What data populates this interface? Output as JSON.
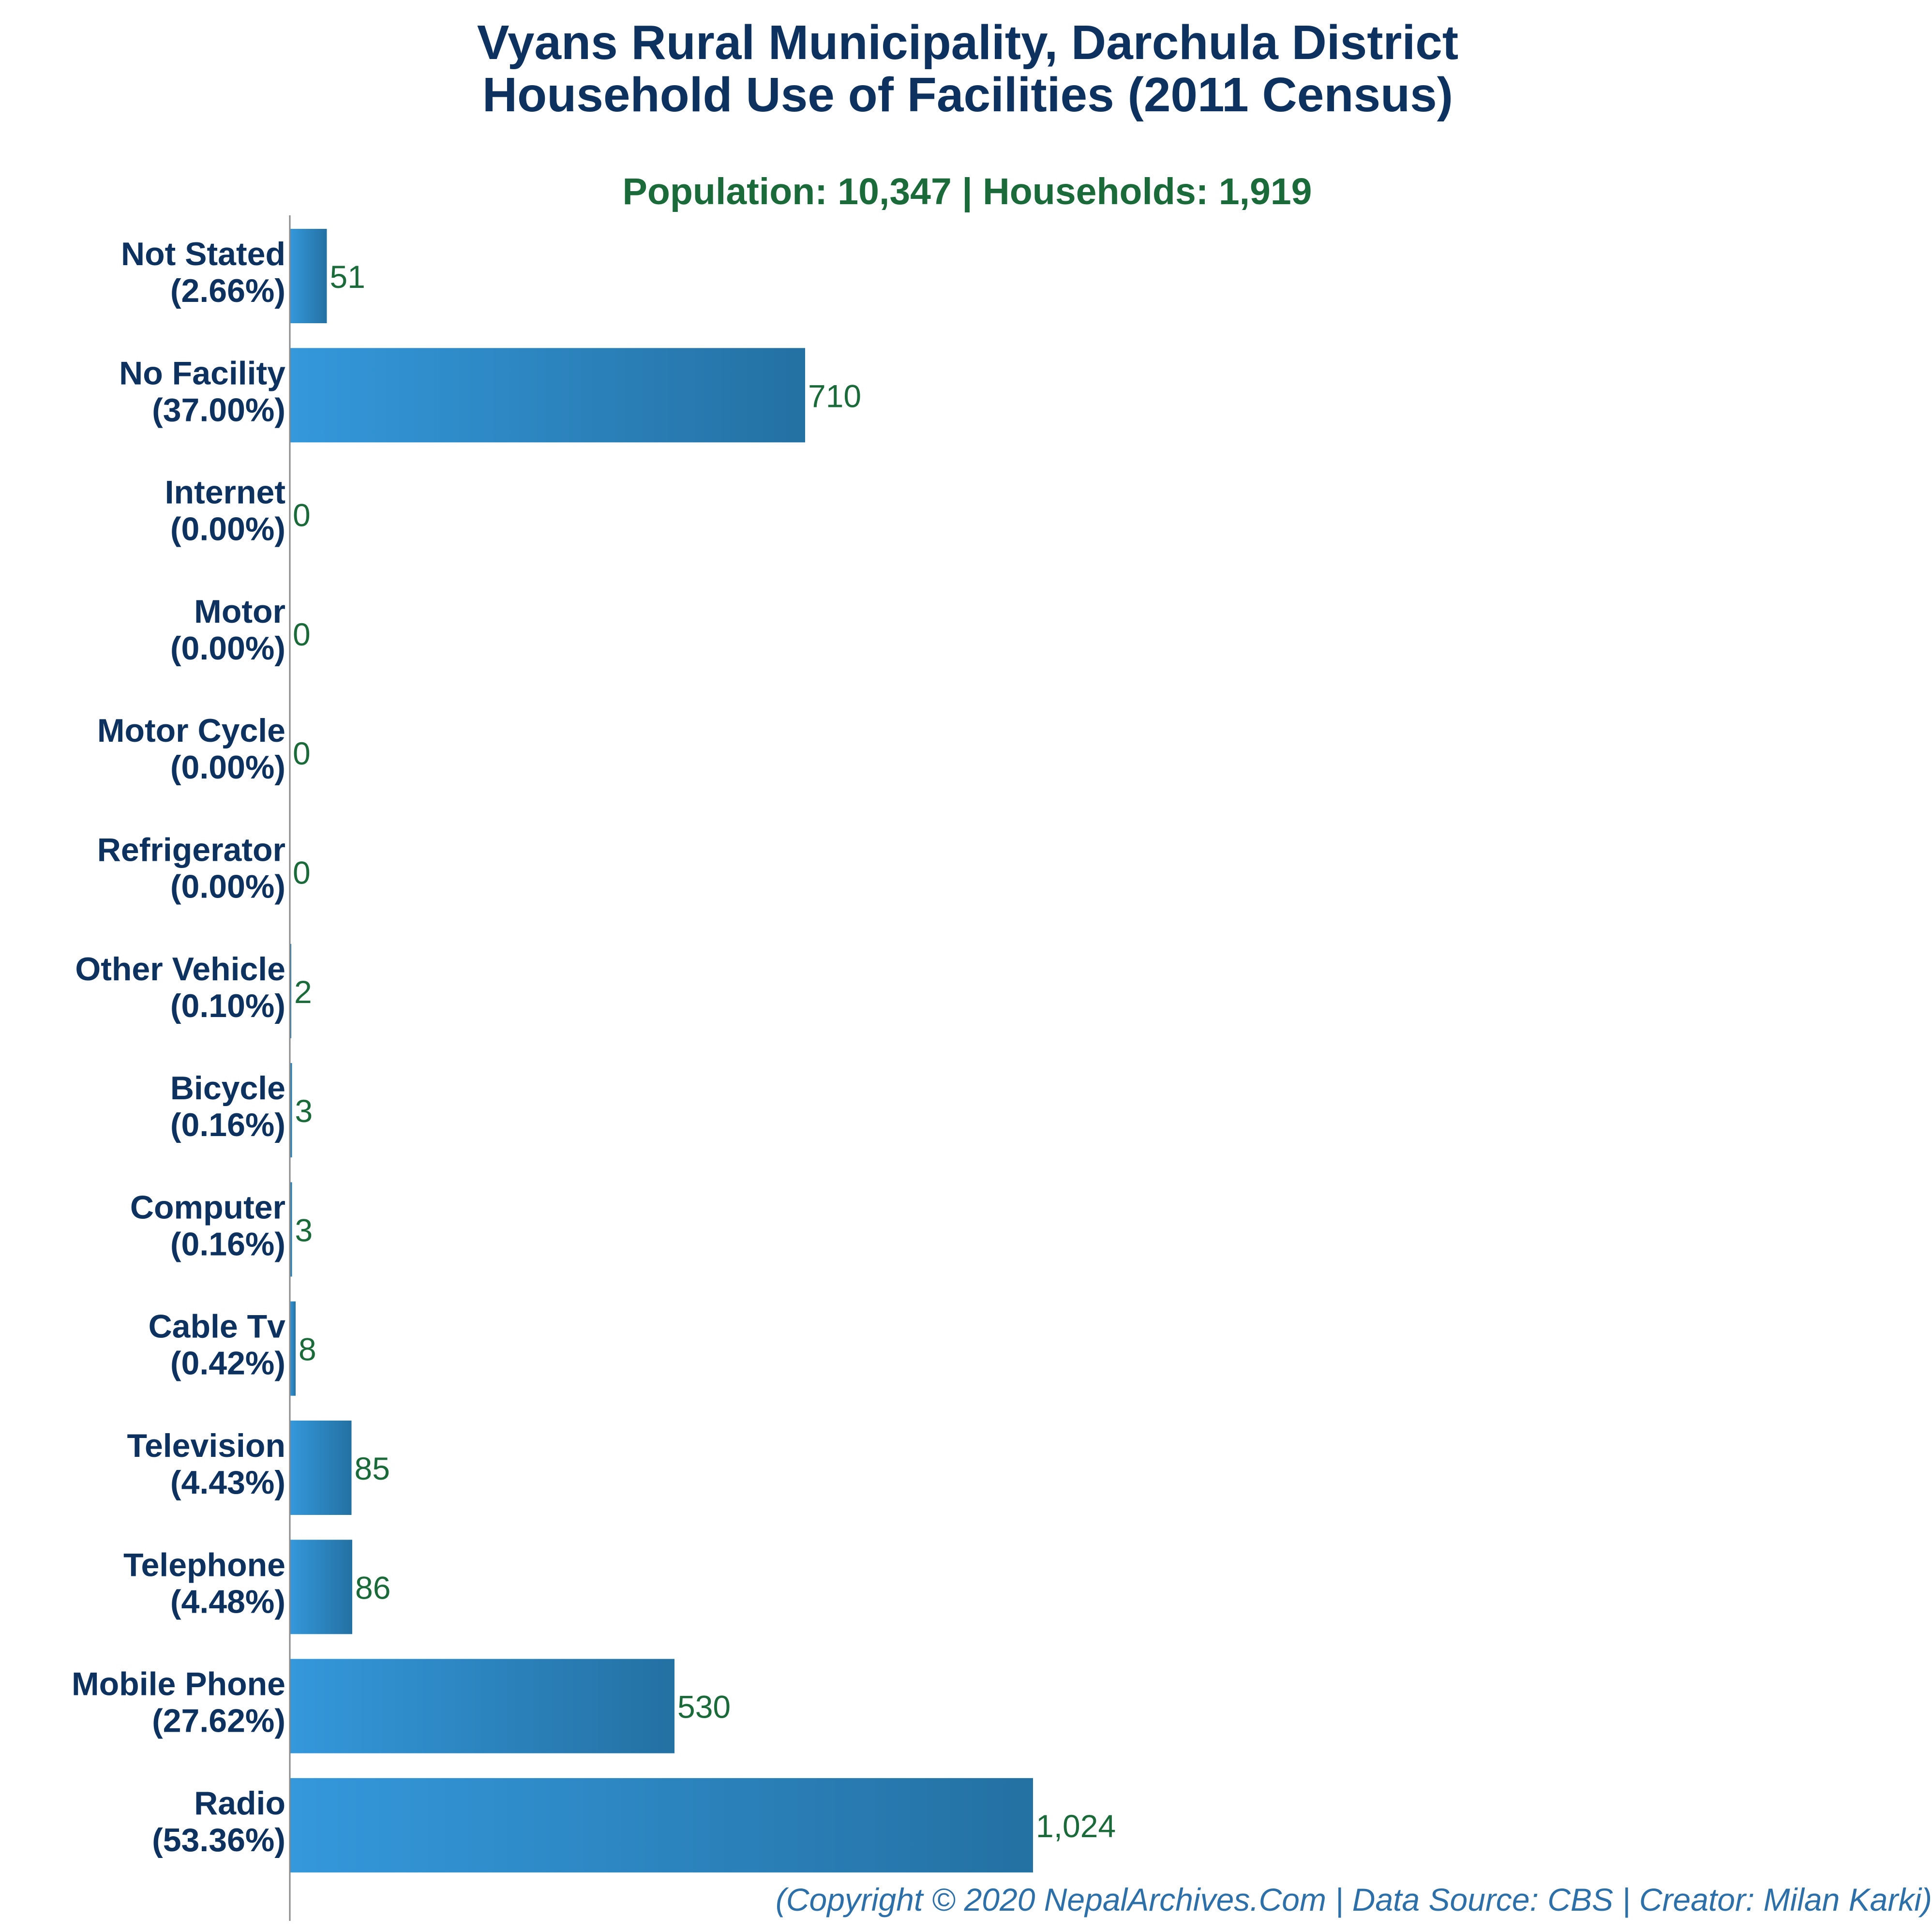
{
  "chart_data": {
    "type": "bar",
    "orientation": "horizontal",
    "title_line1": "Vyans Rural Municipality, Darchula District",
    "title_line2": "Household Use of Facilities (2011 Census)",
    "subtitle": "Population: 10,347 | Households: 1,919",
    "footer": "(Copyright © 2020 NepalArchives.Com | Data Source: CBS | Creator: Milan Karki)",
    "categories": [
      "Not Stated",
      "No Facility",
      "Internet",
      "Motor",
      "Motor Cycle",
      "Refrigerator",
      "Other Vehicle",
      "Bicycle",
      "Computer",
      "Cable Tv",
      "Television",
      "Telephone",
      "Mobile Phone",
      "Radio"
    ],
    "percent_labels": [
      "(2.66%)",
      "(37.00%)",
      "(0.00%)",
      "(0.00%)",
      "(0.00%)",
      "(0.00%)",
      "(0.10%)",
      "(0.16%)",
      "(0.16%)",
      "(0.42%)",
      "(4.43%)",
      "(4.48%)",
      "(27.62%)",
      "(53.36%)"
    ],
    "values": [
      51,
      710,
      0,
      0,
      0,
      0,
      2,
      3,
      3,
      8,
      85,
      86,
      530,
      1024
    ],
    "value_labels": [
      "51",
      "710",
      "0",
      "0",
      "0",
      "0",
      "2",
      "3",
      "3",
      "8",
      "85",
      "86",
      "530",
      "1,024"
    ],
    "xlim": [
      0,
      2500
    ],
    "grid": false,
    "legend": "none",
    "colors": {
      "bar_start": "#3498db",
      "bar_end": "#2471a3",
      "title": "#0e3260",
      "subtitle": "#1a6a3a",
      "value_label": "#1a6a3a",
      "footer": "#2d6fa8",
      "axis": "#888888"
    }
  }
}
